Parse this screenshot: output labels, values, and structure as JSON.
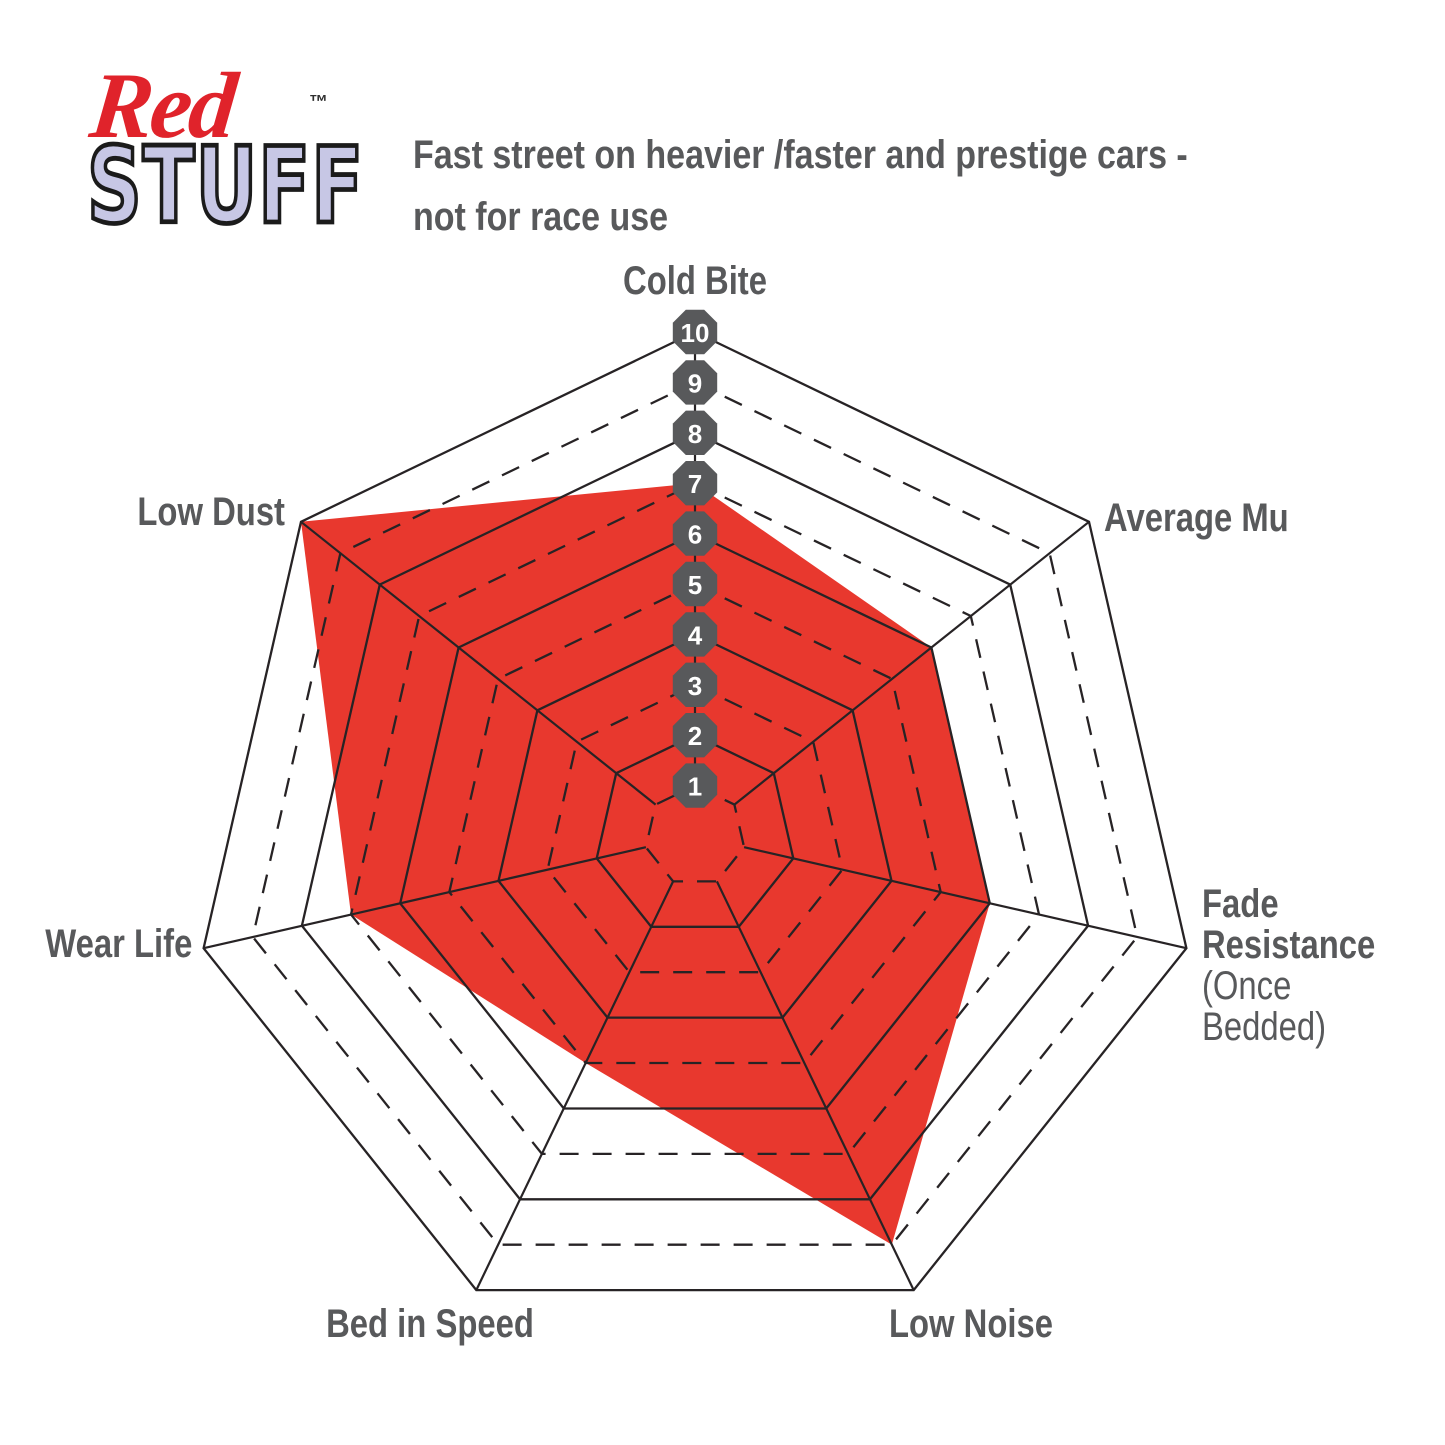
{
  "logo": {
    "word_red": "Red",
    "word_stuff": "STUFF",
    "trademark": "™"
  },
  "header": {
    "title": "Fast street on heavier /faster and prestige cars -\nnot for race use"
  },
  "chart_data": {
    "type": "radar",
    "axes": [
      {
        "label": "Cold Bite",
        "value": 7
      },
      {
        "label": "Average Mu",
        "value": 6
      },
      {
        "label": "Fade Resistance",
        "sublabel": "(Once Bedded)",
        "value": 6
      },
      {
        "label": "Low Noise",
        "value": 9
      },
      {
        "label": "Bed in Speed",
        "value": 5
      },
      {
        "label": "Wear Life",
        "value": 7
      },
      {
        "label": "Low Dust",
        "value": 10
      }
    ],
    "scale": {
      "min": 1,
      "max": 10,
      "step": 1,
      "tick_labels": [
        "1",
        "2",
        "3",
        "4",
        "5",
        "6",
        "7",
        "8",
        "9",
        "10"
      ],
      "ring_style": "odd rings dashed, even rings solid",
      "grid": true
    },
    "legend": null,
    "colors": {
      "series_fill": "#e8382e",
      "grid_line": "#272325",
      "tick_badge": "#58595b",
      "tick_text": "#ffffff",
      "axis_label": "#58595b"
    }
  }
}
